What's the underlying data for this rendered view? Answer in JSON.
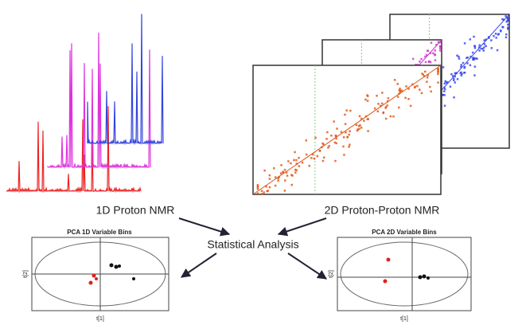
{
  "labels": {
    "nmr_1d": "1D Proton NMR",
    "nmr_2d": "2D Proton-Proton NMR",
    "analysis": "Statistical Analysis"
  },
  "pca_plots": [
    {
      "title": "PCA 1D Variable Bins",
      "x_label": "t[1]",
      "y_label": "t[2]"
    },
    {
      "title": "PCA 2D Variable Bins",
      "x_label": "t[1]",
      "y_label": "t[2]"
    }
  ]
}
